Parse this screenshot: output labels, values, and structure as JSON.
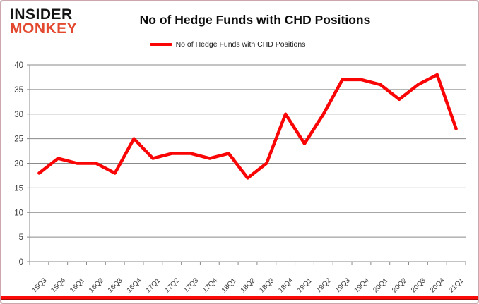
{
  "logo": {
    "line1": "INSIDER",
    "line2": "MONKEY"
  },
  "legend": {
    "label": "No of Hedge Funds with CHD Positions"
  },
  "colors": {
    "line": "#fa0505",
    "grid": "#8a8a8a",
    "axis": "#8a8a8a",
    "logo_accent": "#e2492f",
    "bottom_bar": "#fb0b07"
  },
  "chart_data": {
    "type": "line",
    "title": "No of Hedge Funds with CHD Positions",
    "categories": [
      "15Q3",
      "15Q4",
      "16Q1",
      "16Q2",
      "16Q3",
      "16Q4",
      "17Q1",
      "17Q2",
      "17Q3",
      "17Q4",
      "18Q1",
      "18Q2",
      "18Q3",
      "18Q4",
      "19Q1",
      "19Q2",
      "19Q3",
      "19Q4",
      "20Q1",
      "20Q2",
      "20Q3",
      "20Q4",
      "21Q1"
    ],
    "values": [
      18,
      21,
      20,
      20,
      18,
      25,
      21,
      22,
      22,
      21,
      22,
      17,
      20,
      30,
      24,
      30,
      37,
      37,
      36,
      33,
      36,
      38,
      27
    ],
    "series_name": "No of Hedge Funds with CHD Positions",
    "xlabel": "",
    "ylabel": "",
    "ylim": [
      0,
      40
    ],
    "ytick_step": 5,
    "grid": true,
    "legend_position": "top"
  }
}
